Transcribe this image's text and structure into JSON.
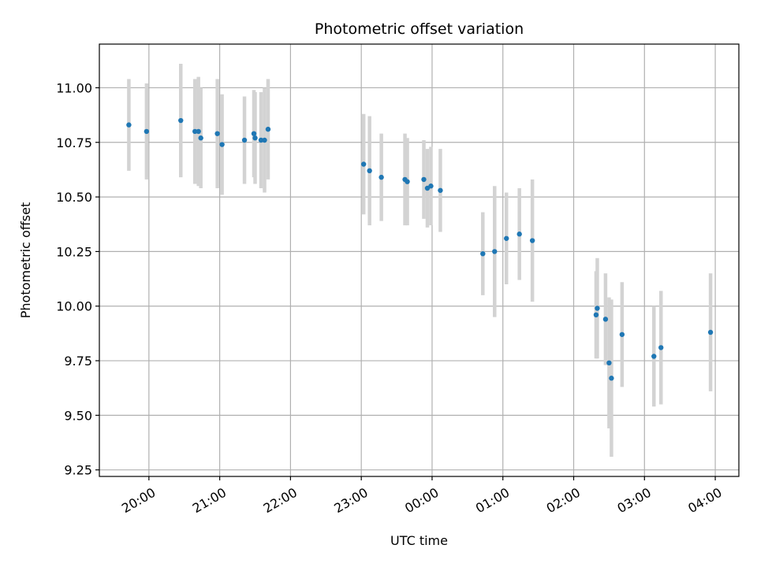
{
  "chart_data": {
    "type": "scatter",
    "title": "Photometric offset variation",
    "xlabel": "UTC time",
    "ylabel": "Photometric offset",
    "grid": true,
    "legend": false,
    "colors": {
      "point": "#1f77b4",
      "errorbar": "#d3d3d3",
      "grid": "#b0b0b0",
      "frame": "#000000"
    },
    "xlim": [
      "19:18",
      "04:20"
    ],
    "ylim": [
      9.22,
      11.2
    ],
    "xticks": [
      "20:00",
      "21:00",
      "22:00",
      "23:00",
      "00:00",
      "01:00",
      "02:00",
      "03:00",
      "04:00"
    ],
    "yticks": [
      "9.25",
      "9.50",
      "9.75",
      "10.00",
      "10.25",
      "10.50",
      "10.75",
      "11.00"
    ],
    "series": [
      {
        "points": [
          {
            "x": "19:43",
            "y": 10.83,
            "err": 0.21
          },
          {
            "x": "19:58",
            "y": 10.8,
            "err": 0.22
          },
          {
            "x": "20:27",
            "y": 10.85,
            "err": 0.26
          },
          {
            "x": "20:39",
            "y": 10.8,
            "err": 0.24
          },
          {
            "x": "20:42",
            "y": 10.8,
            "err": 0.25
          },
          {
            "x": "20:44",
            "y": 10.77,
            "err": 0.23
          },
          {
            "x": "20:58",
            "y": 10.79,
            "err": 0.25
          },
          {
            "x": "21:02",
            "y": 10.74,
            "err": 0.23
          },
          {
            "x": "21:21",
            "y": 10.76,
            "err": 0.2
          },
          {
            "x": "21:29",
            "y": 10.79,
            "err": 0.2
          },
          {
            "x": "21:30",
            "y": 10.77,
            "err": 0.21
          },
          {
            "x": "21:35",
            "y": 10.76,
            "err": 0.22
          },
          {
            "x": "21:38",
            "y": 10.76,
            "err": 0.24
          },
          {
            "x": "21:41",
            "y": 10.81,
            "err": 0.23
          },
          {
            "x": "23:02",
            "y": 10.65,
            "err": 0.23
          },
          {
            "x": "23:07",
            "y": 10.62,
            "err": 0.25
          },
          {
            "x": "23:17",
            "y": 10.59,
            "err": 0.2
          },
          {
            "x": "23:37",
            "y": 10.58,
            "err": 0.21
          },
          {
            "x": "23:39",
            "y": 10.57,
            "err": 0.2
          },
          {
            "x": "23:53",
            "y": 10.58,
            "err": 0.18
          },
          {
            "x": "23:56",
            "y": 10.54,
            "err": 0.18
          },
          {
            "x": "23:59",
            "y": 10.55,
            "err": 0.18
          },
          {
            "x": "00:07",
            "y": 10.53,
            "err": 0.19
          },
          {
            "x": "00:43",
            "y": 10.24,
            "err": 0.19
          },
          {
            "x": "00:53",
            "y": 10.25,
            "err": 0.3
          },
          {
            "x": "01:03",
            "y": 10.31,
            "err": 0.21
          },
          {
            "x": "01:14",
            "y": 10.33,
            "err": 0.21
          },
          {
            "x": "01:25",
            "y": 10.3,
            "err": 0.28
          },
          {
            "x": "02:19",
            "y": 9.96,
            "err": 0.2
          },
          {
            "x": "02:20",
            "y": 9.99,
            "err": 0.23
          },
          {
            "x": "02:27",
            "y": 9.94,
            "err": 0.21
          },
          {
            "x": "02:30",
            "y": 9.74,
            "err": 0.3
          },
          {
            "x": "02:32",
            "y": 9.67,
            "err": 0.36
          },
          {
            "x": "02:41",
            "y": 9.87,
            "err": 0.24
          },
          {
            "x": "03:08",
            "y": 9.77,
            "err": 0.23
          },
          {
            "x": "03:14",
            "y": 9.81,
            "err": 0.26
          },
          {
            "x": "03:56",
            "y": 9.88,
            "err": 0.27
          }
        ]
      }
    ]
  }
}
